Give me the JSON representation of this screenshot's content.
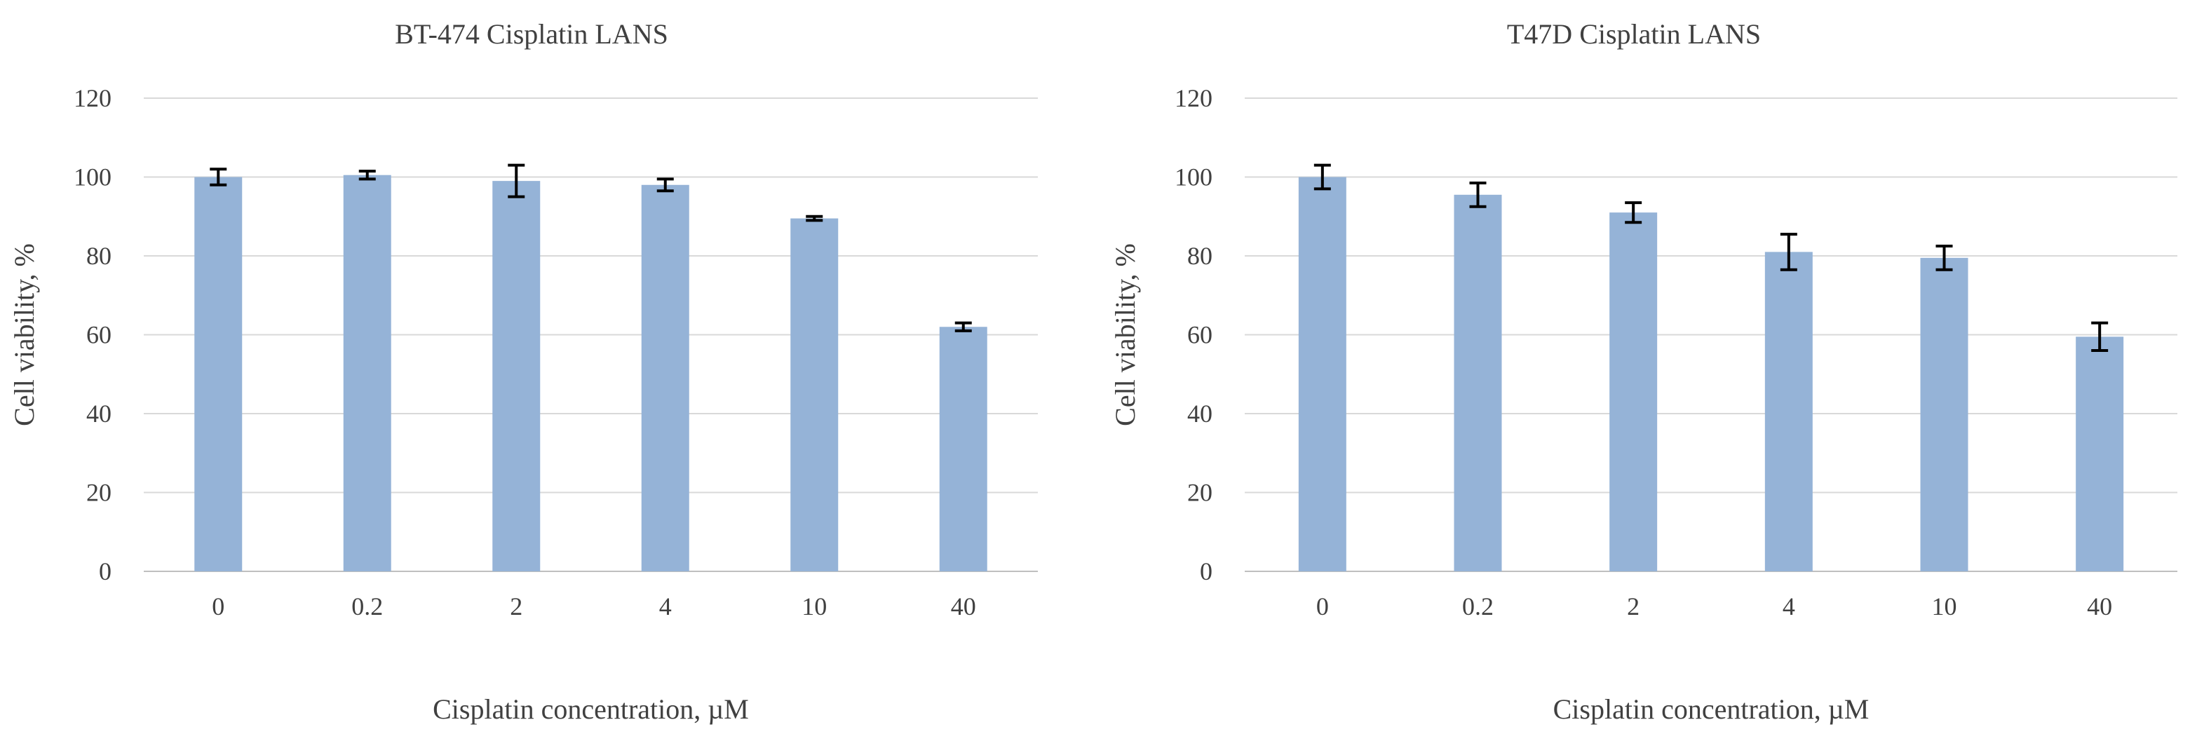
{
  "chart_data": [
    {
      "type": "bar",
      "title": "BT-474 Cisplatin LANS",
      "xlabel": "Cisplatin concentration, µM",
      "ylabel": "Cell viability, %",
      "categories": [
        "0",
        "0.2",
        "2",
        "4",
        "10",
        "40"
      ],
      "values": [
        100,
        100.5,
        99,
        98,
        89.5,
        62
      ],
      "errors": [
        2,
        1,
        4,
        1.5,
        0.5,
        1
      ],
      "ylim": [
        0,
        120
      ],
      "yticks": [
        0,
        20,
        40,
        60,
        80,
        100,
        120
      ],
      "grid": true,
      "bar_color": "#95b3d7",
      "error_color": "#000000"
    },
    {
      "type": "bar",
      "title": "T47D Cisplatin LANS",
      "xlabel": "Cisplatin concentration, µM",
      "ylabel": "Cell viability, %",
      "categories": [
        "0",
        "0.2",
        "2",
        "4",
        "10",
        "40"
      ],
      "values": [
        100,
        95.5,
        91,
        81,
        79.5,
        59.5
      ],
      "errors": [
        3,
        3,
        2.5,
        4.5,
        3,
        3.5
      ],
      "ylim": [
        0,
        120
      ],
      "yticks": [
        0,
        20,
        40,
        60,
        80,
        100,
        120
      ],
      "grid": true,
      "bar_color": "#95b3d7",
      "error_color": "#000000"
    }
  ]
}
